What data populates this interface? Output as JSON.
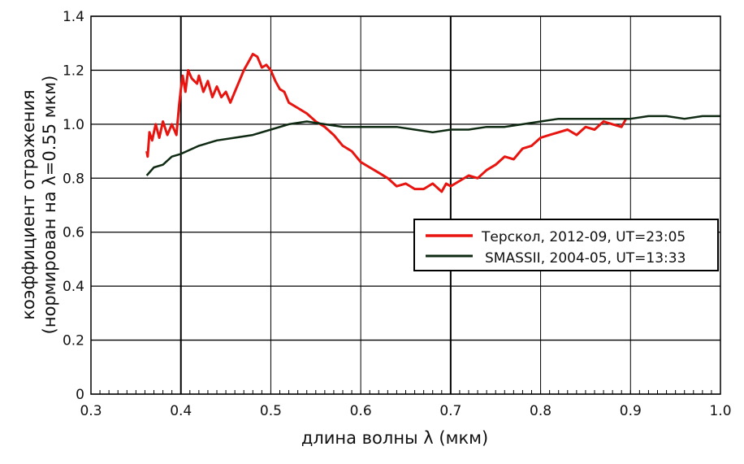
{
  "chart_data": {
    "type": "line",
    "title": "",
    "xlabel": "длина волны λ (мкм)",
    "ylabel_line1": "коэффициент отражения",
    "ylabel_line2": "(нормирован на λ=0.55 мкм)",
    "xlim": [
      0.3,
      1.0
    ],
    "ylim": [
      0,
      1.4
    ],
    "xticks": [
      "0.3",
      "0.4",
      "0.5",
      "0.6",
      "0.7",
      "0.8",
      "0.9",
      "1.0"
    ],
    "yticks": [
      "0",
      "0.2",
      "0.4",
      "0.6",
      "0.8",
      "1.0",
      "1.2",
      "1.4"
    ],
    "grid": true,
    "legend_position": "center-right",
    "series": [
      {
        "name": "Терскол, 2012-09, UT=23:05",
        "color": "#e8140f",
        "x": [
          0.362,
          0.363,
          0.365,
          0.368,
          0.372,
          0.376,
          0.38,
          0.385,
          0.39,
          0.395,
          0.398,
          0.4,
          0.402,
          0.405,
          0.408,
          0.412,
          0.418,
          0.42,
          0.425,
          0.43,
          0.435,
          0.44,
          0.445,
          0.45,
          0.455,
          0.46,
          0.465,
          0.47,
          0.475,
          0.48,
          0.485,
          0.49,
          0.495,
          0.5,
          0.505,
          0.51,
          0.515,
          0.52,
          0.53,
          0.54,
          0.55,
          0.56,
          0.57,
          0.58,
          0.59,
          0.6,
          0.61,
          0.62,
          0.63,
          0.64,
          0.65,
          0.66,
          0.67,
          0.68,
          0.69,
          0.695,
          0.7,
          0.71,
          0.72,
          0.73,
          0.74,
          0.75,
          0.76,
          0.77,
          0.78,
          0.79,
          0.8,
          0.81,
          0.82,
          0.83,
          0.84,
          0.85,
          0.86,
          0.87,
          0.88,
          0.89,
          0.895
        ],
        "y": [
          0.9,
          0.88,
          0.97,
          0.94,
          1.0,
          0.95,
          1.01,
          0.96,
          1.0,
          0.96,
          1.07,
          1.13,
          1.18,
          1.12,
          1.2,
          1.17,
          1.15,
          1.18,
          1.12,
          1.16,
          1.1,
          1.14,
          1.1,
          1.12,
          1.08,
          1.12,
          1.16,
          1.2,
          1.23,
          1.26,
          1.25,
          1.21,
          1.22,
          1.2,
          1.16,
          1.13,
          1.12,
          1.08,
          1.06,
          1.04,
          1.01,
          0.99,
          0.96,
          0.92,
          0.9,
          0.86,
          0.84,
          0.82,
          0.8,
          0.77,
          0.78,
          0.76,
          0.76,
          0.78,
          0.75,
          0.78,
          0.77,
          0.79,
          0.81,
          0.8,
          0.83,
          0.85,
          0.88,
          0.87,
          0.91,
          0.92,
          0.95,
          0.96,
          0.97,
          0.98,
          0.96,
          0.99,
          0.98,
          1.01,
          1.0,
          0.99,
          1.02
        ]
      },
      {
        "name": "SMASSII, 2004-05, UT=13:33",
        "color": "#0f2a12",
        "x": [
          0.362,
          0.37,
          0.38,
          0.39,
          0.4,
          0.42,
          0.44,
          0.46,
          0.48,
          0.5,
          0.52,
          0.54,
          0.56,
          0.58,
          0.6,
          0.62,
          0.64,
          0.66,
          0.68,
          0.7,
          0.72,
          0.74,
          0.76,
          0.78,
          0.8,
          0.82,
          0.84,
          0.86,
          0.88,
          0.9,
          0.92,
          0.94,
          0.96,
          0.98,
          1.0
        ],
        "y": [
          0.81,
          0.84,
          0.85,
          0.88,
          0.89,
          0.92,
          0.94,
          0.95,
          0.96,
          0.98,
          1.0,
          1.01,
          1.0,
          0.99,
          0.99,
          0.99,
          0.99,
          0.98,
          0.97,
          0.98,
          0.98,
          0.99,
          0.99,
          1.0,
          1.01,
          1.02,
          1.02,
          1.02,
          1.02,
          1.02,
          1.03,
          1.03,
          1.02,
          1.03,
          1.03
        ]
      }
    ]
  }
}
